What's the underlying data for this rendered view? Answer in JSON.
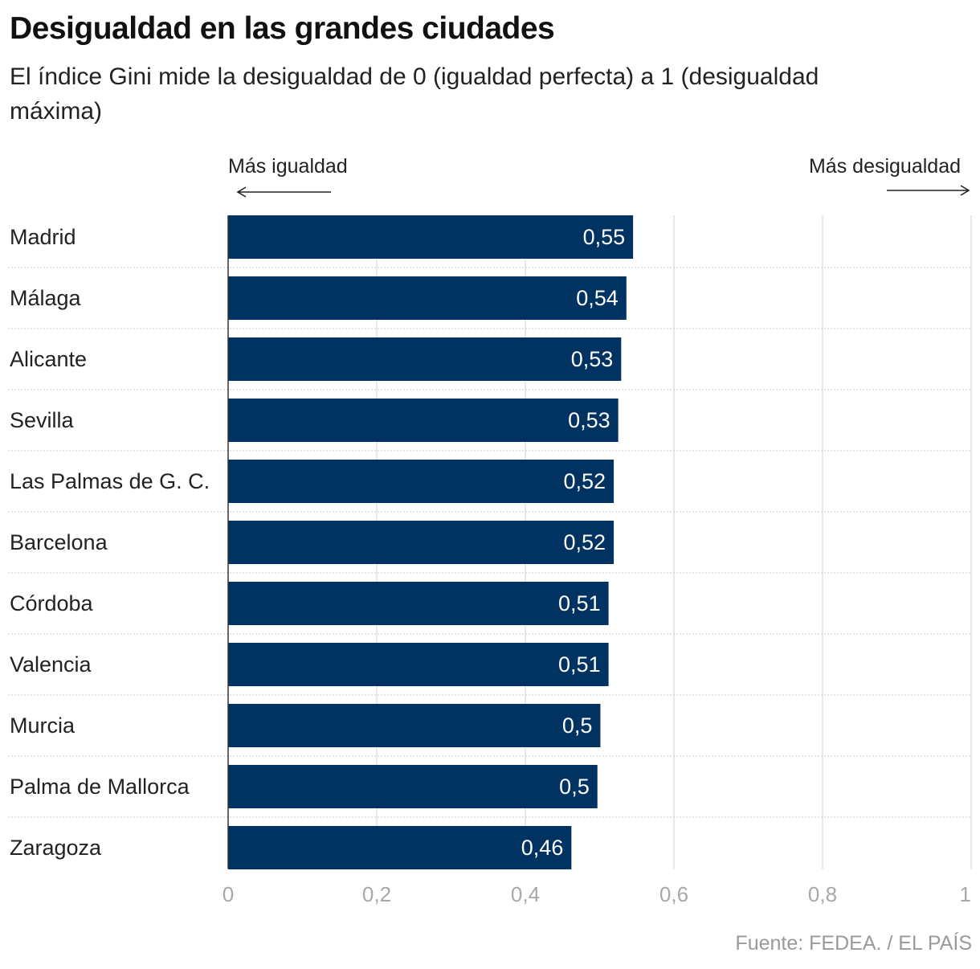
{
  "title": "Desigualdad en las grandes ciudades",
  "subtitle": "El índice Gini mide la desigualdad de 0 (igualdad perfecta) a 1 (desigualdad máxima)",
  "direction_labels": {
    "left": "Más igualdad",
    "right": "Más desigualdad"
  },
  "source": "Fuente: FEDEA. / EL PAÍS",
  "colors": {
    "bar": "#003262",
    "grid": "#e2e2e2",
    "tick": "#a8a8a8"
  },
  "chart_data": {
    "type": "bar",
    "orientation": "horizontal",
    "categories": [
      "Madrid",
      "Málaga",
      "Alicante",
      "Sevilla",
      "Las Palmas de G. C.",
      "Barcelona",
      "Córdoba",
      "Valencia",
      "Murcia",
      "Palma de Mallorca",
      "Zaragoza"
    ],
    "values": [
      0.545,
      0.536,
      0.529,
      0.525,
      0.519,
      0.519,
      0.512,
      0.512,
      0.501,
      0.497,
      0.462
    ],
    "value_labels": [
      "0,55",
      "0,54",
      "0,53",
      "0,53",
      "0,52",
      "0,52",
      "0,51",
      "0,51",
      "0,5",
      "0,5",
      "0,46"
    ],
    "xlim": [
      0,
      1
    ],
    "xticks": [
      0,
      0.2,
      0.4,
      0.6,
      0.8,
      1
    ],
    "xtick_labels": [
      "0",
      "0,2",
      "0,4",
      "0,6",
      "0,8",
      "1"
    ],
    "grid": true
  }
}
